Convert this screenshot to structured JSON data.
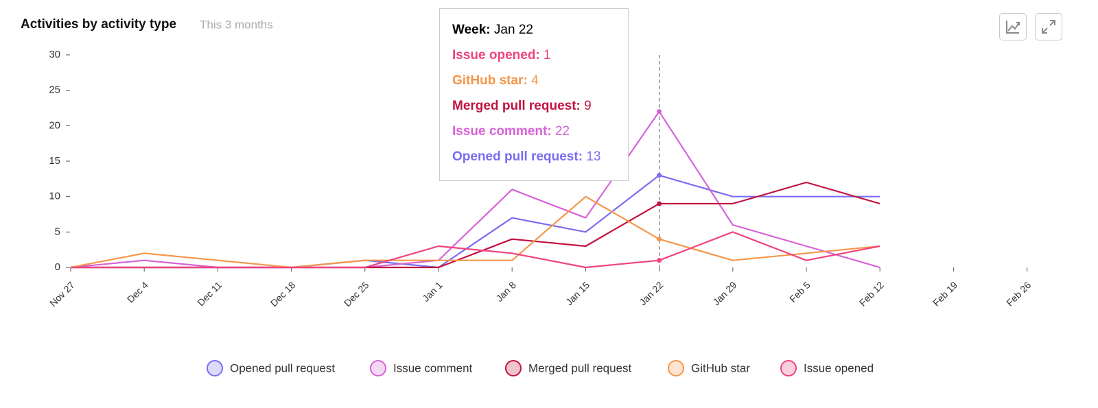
{
  "chart_data": {
    "type": "line",
    "title": "Activities by activity type",
    "subtitle": "This 3 months",
    "categories": [
      "Nov 27",
      "Dec 4",
      "Dec 11",
      "Dec 18",
      "Dec 25",
      "Jan 1",
      "Jan 8",
      "Jan 15",
      "Jan 22",
      "Jan 29",
      "Feb 5",
      "Feb 12",
      "Feb 19",
      "Feb 26"
    ],
    "series": [
      {
        "name": "Opened pull request",
        "color": "#7b6cf0",
        "values": [
          0,
          0,
          0,
          0,
          1,
          0,
          7,
          5,
          13,
          10,
          10,
          10,
          null,
          null
        ]
      },
      {
        "name": "Issue comment",
        "color": "#d862d8",
        "values": [
          0,
          1,
          0,
          0,
          0,
          1,
          11,
          7,
          22,
          6,
          3,
          0,
          null,
          null
        ]
      },
      {
        "name": "Merged pull request",
        "color": "#c2123f",
        "values": [
          0,
          0,
          0,
          0,
          0,
          0,
          4,
          3,
          9,
          9,
          12,
          9,
          null,
          null
        ]
      },
      {
        "name": "GitHub star",
        "color": "#f5964a",
        "values": [
          0,
          2,
          1,
          0,
          1,
          1,
          1,
          10,
          4,
          1,
          2,
          3,
          null,
          null
        ]
      },
      {
        "name": "Issue opened",
        "color": "#f0437c",
        "values": [
          0,
          0,
          0,
          0,
          0,
          3,
          2,
          0,
          1,
          5,
          1,
          3,
          null,
          null
        ]
      }
    ],
    "ylim": [
      0,
      30
    ],
    "yticks": [
      0,
      5,
      10,
      15,
      20,
      25,
      30
    ],
    "grid": false,
    "legend": "bottom",
    "tooltip": {
      "week_label": "Week:",
      "labels": [
        "Issue opened:",
        "GitHub star:",
        "Merged pull request:",
        "Issue comment:",
        "Opened pull request:"
      ]
    }
  }
}
